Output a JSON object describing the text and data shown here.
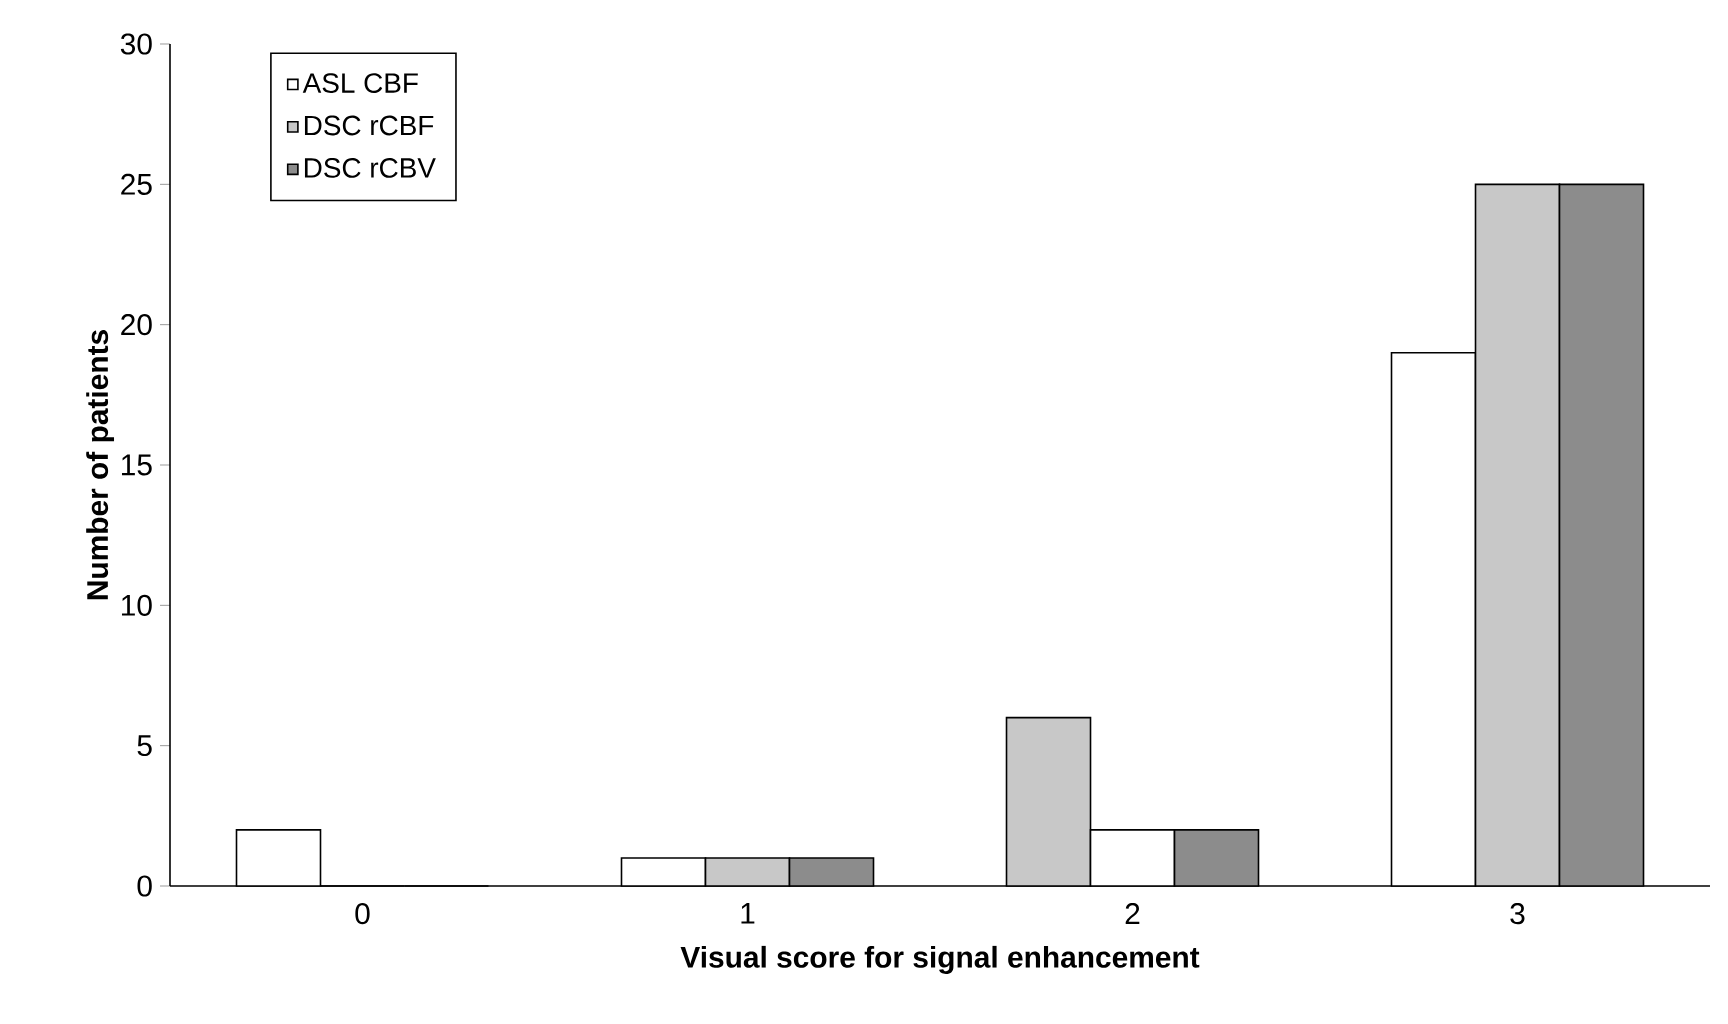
{
  "chart_data": {
    "type": "bar",
    "xlabel": "Visual score for signal enhancement",
    "ylabel": "Number of patients",
    "categories": [
      "0",
      "1",
      "2",
      "3"
    ],
    "series": [
      {
        "name": "ASL CBF",
        "color": "#ffffff",
        "colors": [
          "#ffffff",
          "#ffffff",
          "#c8c8c8",
          "#ffffff"
        ],
        "values": [
          2,
          1,
          6,
          19
        ]
      },
      {
        "name": "DSC rCBF",
        "color": "#c8c8c8",
        "colors": [
          "#c8c8c8",
          "#c8c8c8",
          "#ffffff",
          "#c8c8c8"
        ],
        "values": [
          0,
          1,
          2,
          25
        ]
      },
      {
        "name": "DSC rCBV",
        "color": "#8c8c8c",
        "colors": [
          "#8c8c8c",
          "#8c8c8c",
          "#8c8c8c",
          "#8c8c8c"
        ],
        "values": [
          0,
          1,
          2,
          25
        ]
      }
    ],
    "ylim": [
      0,
      30
    ],
    "yticks": [
      0,
      5,
      10,
      15,
      20,
      25,
      30
    ],
    "grid": false,
    "legend": "top left"
  }
}
